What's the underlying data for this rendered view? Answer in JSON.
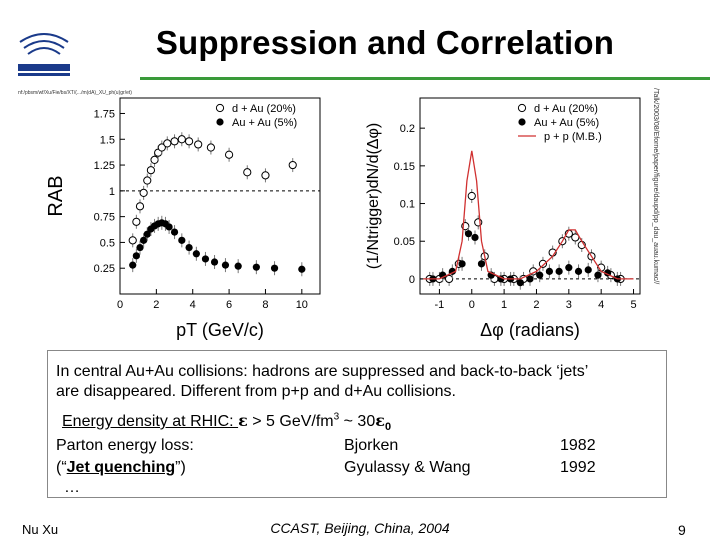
{
  "slide": {
    "title": "Suppression and Correlation",
    "filepath": "nf:/pbsm/wf/Xu/Fie/bs/XT/(.../m(dA)_XU_ph(u)gr/et)",
    "filepath_right": "/Talk/2003/08/Eforne/paper/figure/daupd/pp_dau_auau.kumac//",
    "body_line1": "In central Au+Au collisions: hadrons are suppressed and back-to-back ‘jets’",
    "body_line2": "are disappeared. Different from p+p and d+Au collisions.",
    "energy_prefix": "Energy density at RHIC: ",
    "energy_sym": "ε",
    "energy_mid": " > 5 GeV/fm",
    "energy_exp": "3",
    "energy_tail": " ~ 30",
    "energy_sym2": "ε",
    "energy_sub": "0",
    "parton_label": "Parton energy loss:",
    "parton_author": "Bjorken",
    "parton_year": "1982",
    "jet_open": "(“",
    "jet_label": "Jet quenching",
    "jet_close": "”)",
    "jet_author": "Gyulassy & Wang",
    "jet_year": "1992",
    "ellipsis": "…",
    "footer_left": "Nu Xu",
    "footer_mid": "CCAST, Beijing, China, 2004",
    "page_number": "9"
  },
  "chart_data": [
    {
      "type": "scatter",
      "xlabel": "pT (GeV/c)",
      "ylabel": "RAB",
      "xlim": [
        0,
        11
      ],
      "ylim": [
        0,
        1.9
      ],
      "xticks": [
        0,
        2,
        4,
        6,
        8,
        10
      ],
      "yticks": [
        0.25,
        0.5,
        0.75,
        1,
        1.25,
        1.5,
        1.75
      ],
      "reference_line": 1,
      "legend_position": "top-right",
      "series": [
        {
          "name": "d + Au (20%)",
          "marker": "open-circle",
          "x": [
            0.7,
            0.9,
            1.1,
            1.3,
            1.5,
            1.7,
            1.9,
            2.1,
            2.3,
            2.6,
            3.0,
            3.4,
            3.8,
            4.3,
            5.0,
            6.0,
            7.0,
            8.0,
            9.5
          ],
          "y": [
            0.52,
            0.7,
            0.85,
            0.98,
            1.1,
            1.2,
            1.3,
            1.37,
            1.42,
            1.46,
            1.48,
            1.5,
            1.48,
            1.45,
            1.42,
            1.35,
            1.18,
            1.15,
            1.25
          ]
        },
        {
          "name": "Au + Au (5%)",
          "marker": "filled-circle",
          "x": [
            0.7,
            0.9,
            1.1,
            1.3,
            1.5,
            1.7,
            1.9,
            2.1,
            2.3,
            2.5,
            2.7,
            3.0,
            3.4,
            3.8,
            4.2,
            4.7,
            5.2,
            5.8,
            6.5,
            7.5,
            8.5,
            10.0
          ],
          "y": [
            0.28,
            0.37,
            0.45,
            0.52,
            0.58,
            0.63,
            0.66,
            0.68,
            0.69,
            0.68,
            0.65,
            0.6,
            0.52,
            0.45,
            0.39,
            0.34,
            0.31,
            0.28,
            0.27,
            0.26,
            0.25,
            0.24
          ]
        }
      ]
    },
    {
      "type": "scatter",
      "xlabel": "Δφ (radians)",
      "ylabel": "(1/Ntrigger)dN/d(Δφ)",
      "xlim": [
        -1.6,
        5.2
      ],
      "ylim": [
        -0.02,
        0.24
      ],
      "xticks": [
        -1,
        0,
        1,
        2,
        3,
        4,
        5
      ],
      "yticks": [
        0,
        0.05,
        0.1,
        0.15,
        0.2
      ],
      "reference_line": 0,
      "legend_position": "top-right",
      "series": [
        {
          "name": "d + Au (20%)",
          "marker": "open-circle",
          "x": [
            -1.3,
            -1.0,
            -0.7,
            -0.4,
            -0.2,
            0.0,
            0.2,
            0.4,
            0.7,
            1.0,
            1.3,
            1.6,
            1.9,
            2.2,
            2.5,
            2.8,
            3.0,
            3.2,
            3.4,
            3.7,
            4.0,
            4.3,
            4.6
          ],
          "y": [
            0.0,
            0.0,
            0.0,
            0.02,
            0.07,
            0.11,
            0.075,
            0.03,
            0.0,
            0.0,
            0.0,
            0.0,
            0.01,
            0.02,
            0.035,
            0.05,
            0.06,
            0.055,
            0.045,
            0.03,
            0.015,
            0.005,
            0.0
          ]
        },
        {
          "name": "Au + Au (5%)",
          "marker": "filled-circle",
          "x": [
            -1.2,
            -0.9,
            -0.6,
            -0.3,
            -0.1,
            0.1,
            0.3,
            0.6,
            0.9,
            1.2,
            1.5,
            1.8,
            2.1,
            2.4,
            2.7,
            3.0,
            3.3,
            3.6,
            3.9,
            4.2,
            4.5
          ],
          "y": [
            0.0,
            0.005,
            0.01,
            0.02,
            0.06,
            0.055,
            0.02,
            0.005,
            0.0,
            0.0,
            -0.005,
            0.0,
            0.005,
            0.01,
            0.01,
            0.015,
            0.01,
            0.012,
            0.005,
            0.008,
            0.0
          ]
        },
        {
          "name": "p + p (M.B.)",
          "marker": "line",
          "x": [
            -1.5,
            -1.0,
            -0.5,
            -0.3,
            -0.15,
            0.0,
            0.15,
            0.3,
            0.5,
            1.0,
            1.5,
            2.0,
            2.5,
            2.8,
            3.0,
            3.2,
            3.4,
            3.7,
            4.0,
            4.5,
            5.0
          ],
          "y": [
            0.0,
            0.0,
            0.01,
            0.05,
            0.13,
            0.17,
            0.13,
            0.05,
            0.01,
            0.0,
            0.0,
            0.01,
            0.03,
            0.05,
            0.065,
            0.065,
            0.05,
            0.03,
            0.01,
            0.0,
            0.0
          ]
        }
      ]
    }
  ]
}
